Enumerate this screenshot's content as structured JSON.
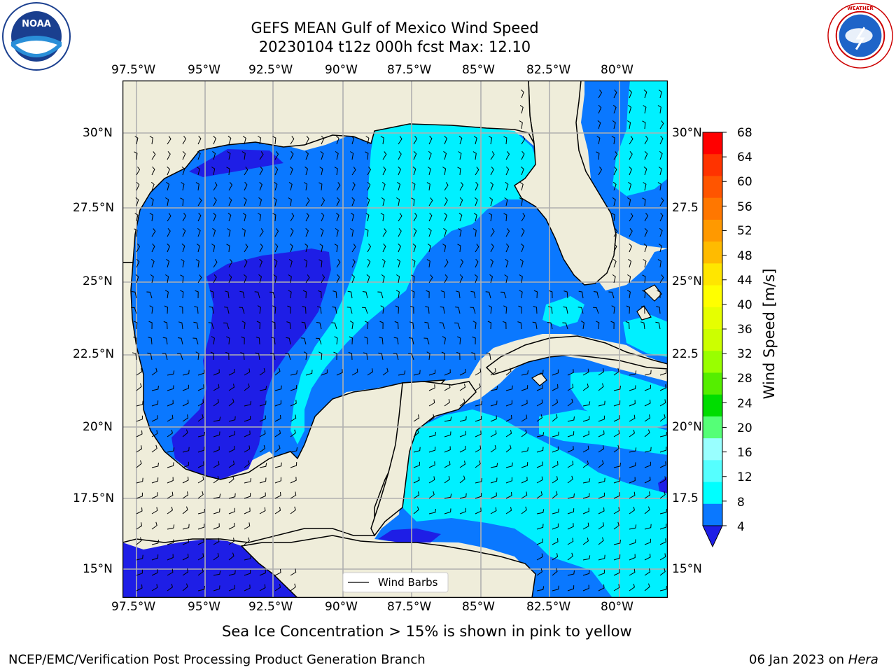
{
  "header": {
    "title_line1": "GEFS MEAN Gulf of Mexico Wind Speed",
    "title_line2": "20230104 t12z 000h fcst   Max: 12.10"
  },
  "logos": {
    "noaa_text": "NOAA",
    "noaa_ring_text": "NATIONAL OCEANIC AND ATMOSPHERIC ADMINISTRATION · U.S. DEPARTMENT OF COMMERCE",
    "nws_ring_text": "NATIONAL WEATHER SERVICE"
  },
  "map": {
    "lon_labels": [
      "97.5°W",
      "95°W",
      "92.5°W",
      "90°W",
      "87.5°W",
      "85°W",
      "82.5°W",
      "80°W"
    ],
    "lat_labels_left": [
      "30°N",
      "27.5°N",
      "25°N",
      "22.5°N",
      "20°N",
      "17.5°N",
      "15°N"
    ],
    "lat_labels_right": [
      "30°N",
      "27.5",
      "25°N",
      "22.5",
      "20°N",
      "17.5",
      "15°N"
    ],
    "legend_label": "Wind Barbs",
    "colors": {
      "land": "#efedda",
      "water_dark": "#1e1ee6",
      "water_mid": "#0a78ff",
      "water_light": "#00f0ff",
      "grid": "#b0b0b0"
    }
  },
  "colorbar": {
    "label": "Wind Speed [m/s]",
    "ticks": [
      "68",
      "64",
      "60",
      "56",
      "52",
      "48",
      "44",
      "40",
      "36",
      "32",
      "28",
      "24",
      "20",
      "16",
      "12",
      "8",
      "4"
    ],
    "colors": [
      "#ff0000",
      "#ff3300",
      "#ff5500",
      "#ff7700",
      "#ff9900",
      "#ffbb00",
      "#ffe600",
      "#ffff00",
      "#e6ff00",
      "#ccff00",
      "#99ff00",
      "#55ee00",
      "#00dd00",
      "#55ff77",
      "#99ffff",
      "#55ffff",
      "#00ffff",
      "#0a78ff"
    ],
    "extend_color": "#1e1ee6"
  },
  "notes": {
    "sea_ice": "Sea Ice Concentration > 15% is shown in pink to yellow",
    "credit": "NCEP/EMC/Verification Post Processing Product Generation Branch",
    "date_prefix": "06 Jan 2023 on ",
    "date_host": "Hera"
  }
}
